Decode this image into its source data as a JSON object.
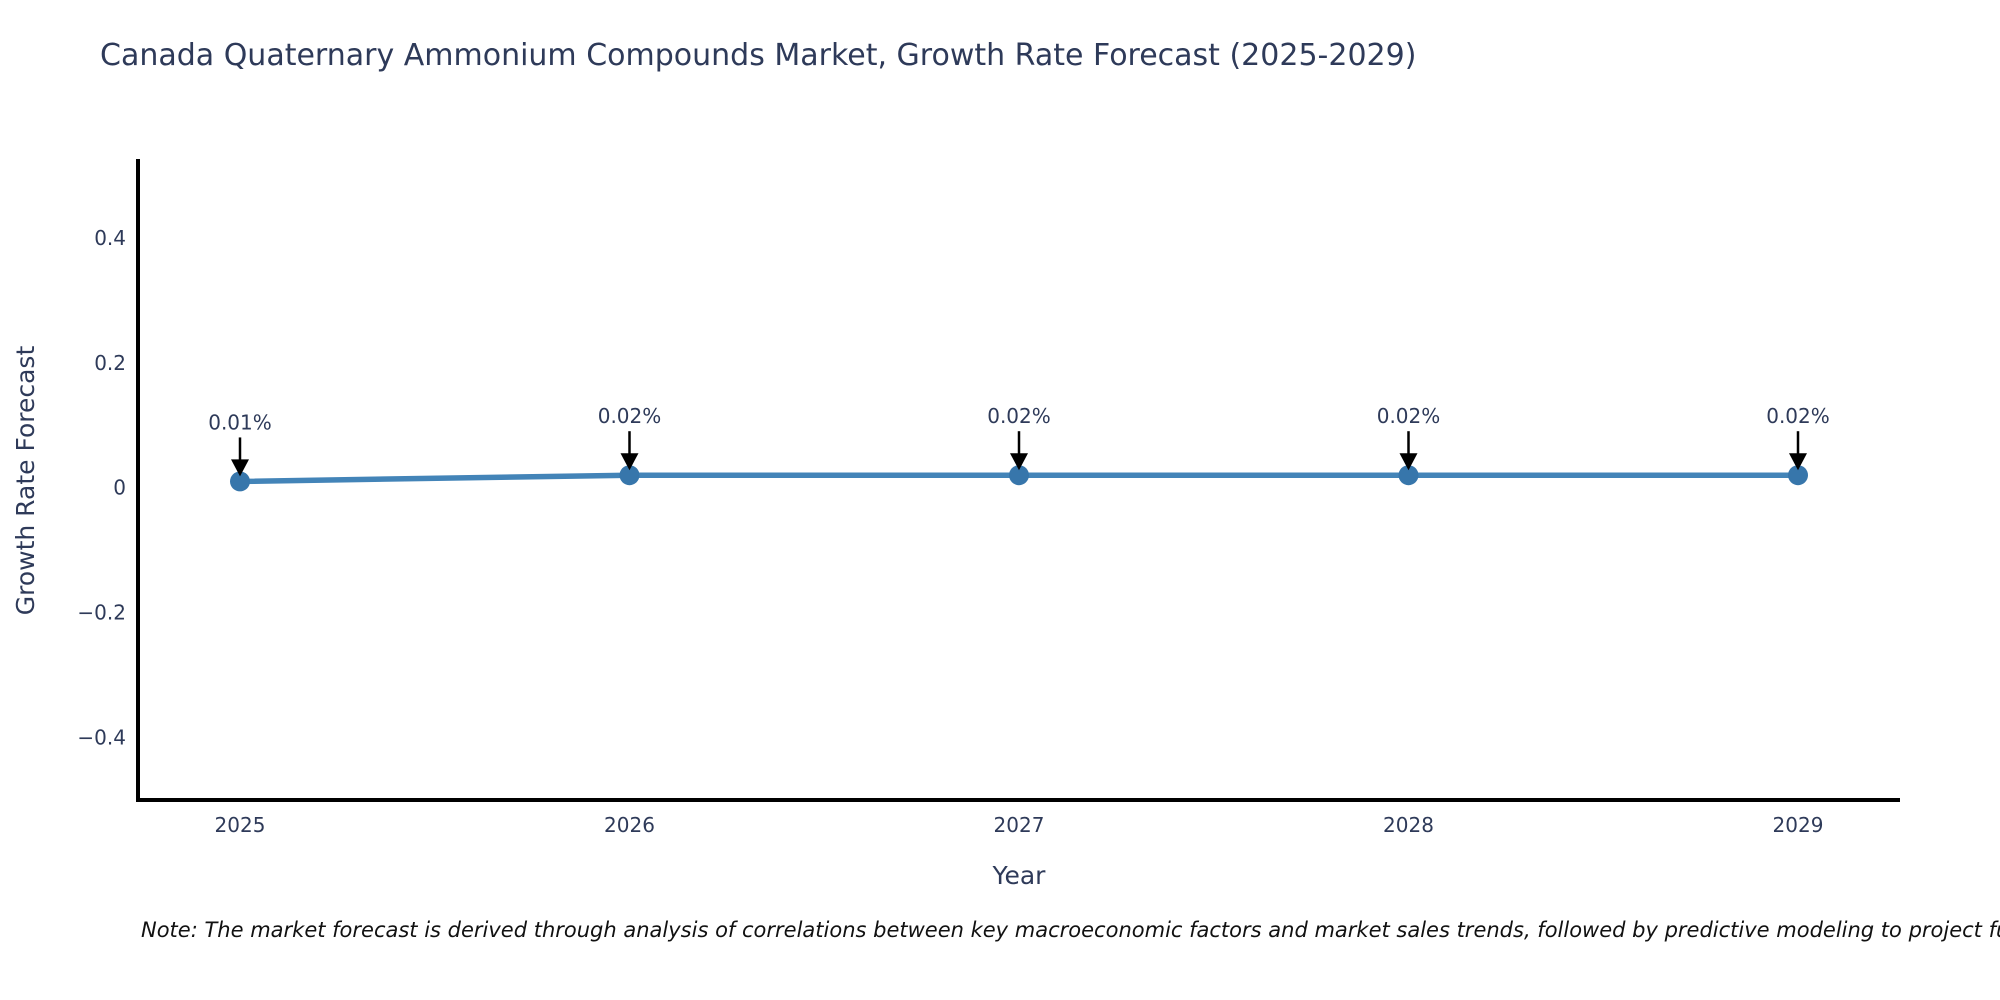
{
  "chart_data": {
    "type": "line",
    "title": "Canada Quaternary Ammonium Compounds Market, Growth Rate Forecast (2025-2029)",
    "x": [
      2025,
      2026,
      2027,
      2028,
      2029
    ],
    "series": [
      {
        "name": "Growth Rate Forecast",
        "values": [
          0.01,
          0.02,
          0.02,
          0.02,
          0.02
        ]
      }
    ],
    "point_labels": [
      "0.01%",
      "0.02%",
      "0.02%",
      "0.02%",
      "0.02%"
    ],
    "xlabel": "Year",
    "ylabel": "Growth Rate Forecast",
    "yticks": [
      0.4,
      0.2,
      0,
      -0.2,
      -0.4
    ],
    "ylim": [
      -0.5,
      0.523
    ],
    "grid": false,
    "legend": "none",
    "colors": {
      "line": "#4384b8",
      "marker": "#3776ab",
      "axis": "#000000",
      "text": "#2e3a59",
      "annotation_text": "#2e3a59",
      "annotation_arrow": "#000000",
      "note_text": "#111111",
      "background": "#ffffff"
    }
  },
  "footnote": {
    "text": "Note: The market forecast is derived through analysis of correlations between key macroeconomic factors and market sales trends, followed by predictive modeling to project future sales"
  }
}
